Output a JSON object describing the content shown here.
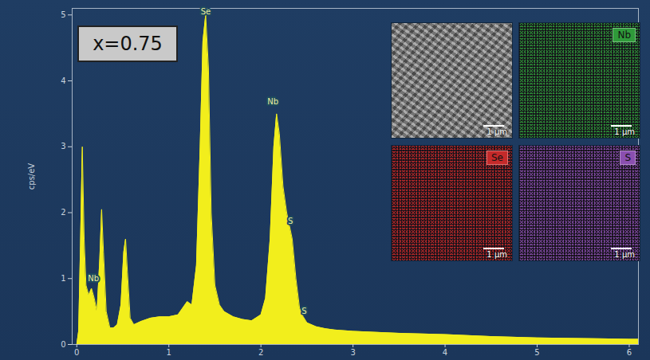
{
  "chart_data": {
    "type": "area",
    "annotation": "x=0.75",
    "y_label": "cps/eV",
    "color": "#f2ee1c",
    "x": [
      -0.05,
      0,
      0.02,
      0.04,
      0.06,
      0.08,
      0.1,
      0.13,
      0.16,
      0.19,
      0.22,
      0.25,
      0.27,
      0.29,
      0.32,
      0.36,
      0.4,
      0.44,
      0.48,
      0.51,
      0.53,
      0.55,
      0.58,
      0.62,
      0.7,
      0.8,
      0.9,
      1.0,
      1.1,
      1.15,
      1.2,
      1.25,
      1.3,
      1.34,
      1.37,
      1.4,
      1.43,
      1.46,
      1.5,
      1.55,
      1.6,
      1.7,
      1.8,
      1.9,
      2.0,
      2.05,
      2.1,
      2.14,
      2.17,
      2.2,
      2.24,
      2.28,
      2.31,
      2.34,
      2.38,
      2.42,
      2.46,
      2.5,
      2.6,
      2.7,
      2.8,
      3.0,
      3.5,
      4.0,
      4.5,
      5.0,
      5.5,
      6.0,
      6.1
    ],
    "values": [
      0,
      0,
      0.2,
      1.5,
      3.0,
      1.6,
      0.9,
      0.75,
      0.85,
      0.7,
      0.5,
      1.3,
      2.05,
      1.4,
      0.5,
      0.25,
      0.25,
      0.3,
      0.6,
      1.4,
      1.6,
      1.1,
      0.4,
      0.3,
      0.35,
      0.4,
      0.42,
      0.42,
      0.45,
      0.55,
      0.65,
      0.6,
      1.2,
      3.0,
      4.6,
      5.0,
      4.2,
      2.0,
      0.9,
      0.6,
      0.5,
      0.42,
      0.38,
      0.36,
      0.45,
      0.7,
      1.6,
      3.0,
      3.5,
      3.2,
      2.4,
      2.0,
      1.8,
      1.6,
      1.0,
      0.55,
      0.42,
      0.33,
      0.27,
      0.24,
      0.22,
      0.2,
      0.17,
      0.15,
      0.12,
      0.1,
      0.09,
      0.08,
      0.08
    ],
    "xlim": [
      -0.05,
      6.1
    ],
    "ylim": [
      0,
      5.1
    ],
    "xticks": [
      0,
      1,
      2,
      3,
      4,
      5,
      6
    ],
    "yticks": [
      0,
      1,
      2,
      3,
      4,
      5
    ],
    "grid": false,
    "peak_labels": [
      {
        "text": "Nb",
        "x": 0.18,
        "y": 0.95
      },
      {
        "text": "Se",
        "x": 1.4,
        "y": 5.0
      },
      {
        "text": "Nb",
        "x": 2.13,
        "y": 3.63
      },
      {
        "text": "S",
        "x": 2.32,
        "y": 1.82
      },
      {
        "text": "S",
        "x": 2.47,
        "y": 0.45
      }
    ],
    "maps": [
      {
        "label": null,
        "color": "#8c8c8c",
        "scale_bar": "1 µm"
      },
      {
        "label": "Nb",
        "color": "#2f9a3a",
        "scale_bar": "1 µm"
      },
      {
        "label": "Se",
        "color": "#c42a2a",
        "scale_bar": "1 µm"
      },
      {
        "label": "S",
        "color": "#8a4fb0",
        "scale_bar": "1 µm"
      }
    ]
  }
}
